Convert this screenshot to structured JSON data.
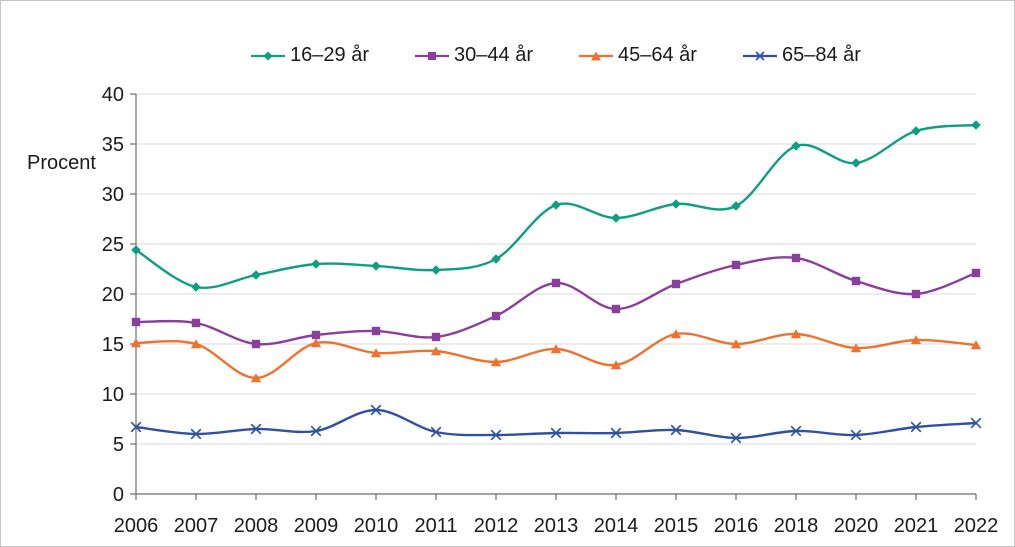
{
  "figure": {
    "background": "#ffffff",
    "border_color": "#c6c6c6"
  },
  "chart_data": {
    "type": "line",
    "title": "",
    "xlabel": "",
    "ylabel": "Procent",
    "smooth_lines": true,
    "grid": "horizontal",
    "gridline_color": "#d9d9d9",
    "axis_color": "#6e6e6e",
    "legend_position": "top-center",
    "ylim": [
      0,
      40
    ],
    "y_ticks": [
      0,
      5,
      10,
      15,
      20,
      25,
      30,
      35,
      40
    ],
    "x_labels": [
      "2006",
      "2007",
      "2008",
      "2009",
      "2010",
      "2011",
      "2012",
      "2013",
      "2014",
      "2015",
      "2016",
      "2018",
      "2020",
      "2021",
      "2022"
    ],
    "series": [
      {
        "name": "16–29 år",
        "color": "#0E9E80",
        "marker": "diamond",
        "values": [
          24.4,
          20.7,
          21.9,
          23.0,
          22.8,
          22.4,
          23.5,
          28.9,
          27.6,
          29.0,
          28.8,
          34.8,
          33.1,
          36.3,
          36.9
        ]
      },
      {
        "name": "30–44 år",
        "color": "#8A3F9B",
        "marker": "square",
        "values": [
          17.2,
          17.1,
          15.0,
          15.9,
          16.3,
          15.7,
          17.8,
          21.1,
          18.5,
          21.0,
          22.9,
          23.6,
          21.3,
          20.0,
          22.1
        ]
      },
      {
        "name": "45–64 år",
        "color": "#ED722E",
        "marker": "triangle",
        "values": [
          15.1,
          15.0,
          11.6,
          15.1,
          14.1,
          14.3,
          13.2,
          14.5,
          12.9,
          16.0,
          15.0,
          16.0,
          14.6,
          15.4,
          14.9
        ]
      },
      {
        "name": "65–84 år",
        "color": "#30519F",
        "marker": "x",
        "values": [
          6.7,
          6.0,
          6.5,
          6.3,
          8.4,
          6.2,
          5.9,
          6.1,
          6.1,
          6.4,
          5.6,
          6.3,
          5.9,
          6.7,
          7.1
        ]
      }
    ]
  }
}
